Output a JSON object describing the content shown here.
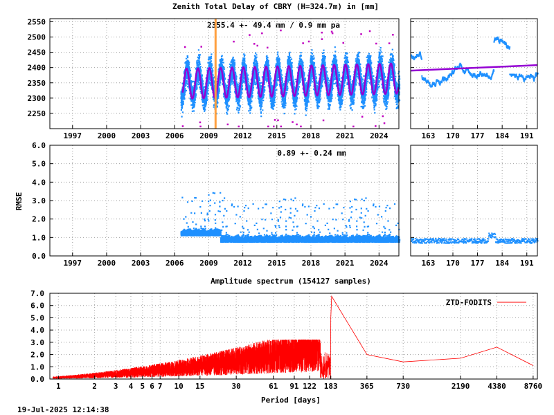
{
  "title": "Zenith Total Delay of CBRY (H=324.7m) in [mm]",
  "timestamp": "19-Jul-2025 12:14:38",
  "colors": {
    "obs": "#1e90ff",
    "model": "#9400d3",
    "outlier": "#c000c0",
    "event": "#ffa040",
    "spectrum": "#ff0000",
    "grid": "#a0a0a0"
  },
  "chart_data": [
    {
      "id": "ztd-series",
      "type": "scatter",
      "annotation": "2355.4 +-  49.4 mm /  0.9 mm pa",
      "ylim": [
        2200,
        2560
      ],
      "yticks": [
        "2250",
        "2300",
        "2350",
        "2400",
        "2450",
        "2500",
        "2550"
      ],
      "xlim": [
        1995.0,
        2025.75
      ],
      "xticks": [
        "1997",
        "2000",
        "2003",
        "2006",
        "2009",
        "2012",
        "2015",
        "2018",
        "2021",
        "2024"
      ],
      "data_start": 2006.5,
      "mean": 2355.4,
      "trend_mm_per_year": 0.9,
      "seasonal_amplitude_mm": 49.4,
      "event_year": 2009.6,
      "series": [
        {
          "role": "observations"
        },
        {
          "role": "seasonal model"
        }
      ]
    },
    {
      "id": "ztd-zoom",
      "type": "scatter",
      "ylim": [
        2200,
        2560
      ],
      "xlim": [
        158,
        194
      ],
      "xticks": [
        "163",
        "170",
        "177",
        "184",
        "191"
      ],
      "model_level": [
        2390,
        2408
      ]
    },
    {
      "id": "rmse-series",
      "type": "scatter",
      "annotation": "0.89 +-  0.24 mm",
      "ylabel": "RMSE",
      "ylim": [
        0,
        6
      ],
      "yticks": [
        "0.0",
        "1.0",
        "2.0",
        "3.0",
        "4.0",
        "5.0",
        "6.0"
      ],
      "xlim": [
        1995.0,
        2025.75
      ],
      "xticks": [
        "1997",
        "2000",
        "2003",
        "2006",
        "2009",
        "2012",
        "2015",
        "2018",
        "2021",
        "2024"
      ],
      "mean": 0.89
    },
    {
      "id": "rmse-zoom",
      "type": "scatter",
      "ylim": [
        0,
        6
      ],
      "xlim": [
        158,
        194
      ],
      "xticks": [
        "163",
        "170",
        "177",
        "184",
        "191"
      ],
      "level": 0.85
    },
    {
      "id": "amplitude-spectrum",
      "type": "line",
      "title": "Amplitude spectrum (154127 samples)",
      "xlabel": "Period [days]",
      "legend": "ZTD-FODITS",
      "legend_position": "top-right",
      "log_x": true,
      "xlim": [
        0.85,
        9500
      ],
      "ylim": [
        0,
        7
      ],
      "yticks": [
        "0.0",
        "1.0",
        "2.0",
        "3.0",
        "4.0",
        "5.0",
        "6.0",
        "7.0"
      ],
      "xticks": [
        "1",
        "2",
        "3",
        "4",
        "5",
        "6",
        "7",
        "10",
        "15",
        "30",
        "61",
        "91",
        "122",
        "183",
        "365",
        "730",
        "2190",
        "4380",
        "8760"
      ],
      "peaks": [
        {
          "period": 183,
          "amplitude": 5.0
        },
        {
          "period": 186,
          "amplitude": 6.75
        },
        {
          "period": 365,
          "amplitude": 2.0
        },
        {
          "period": 730,
          "amplitude": 1.4
        },
        {
          "period": 2190,
          "amplitude": 1.7
        },
        {
          "period": 4380,
          "amplitude": 2.6
        },
        {
          "period": 8760,
          "amplitude": 1.1
        }
      ]
    }
  ]
}
